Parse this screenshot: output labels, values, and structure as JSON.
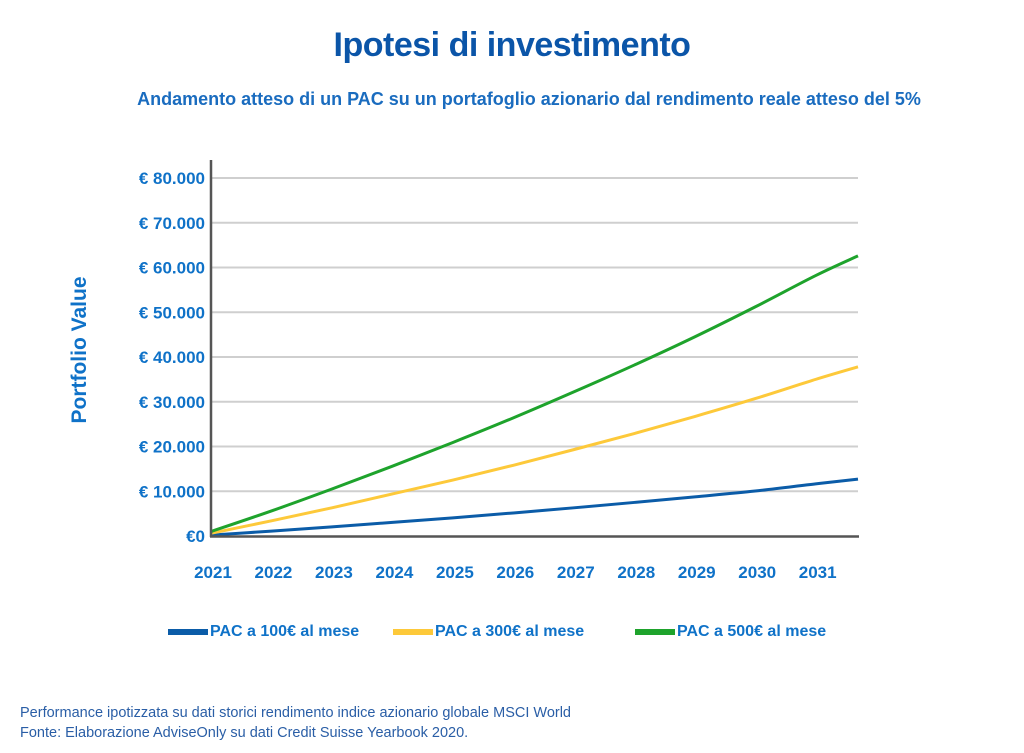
{
  "chart_data": {
    "type": "line",
    "title": "Ipotesi di investimento",
    "subtitle": "Andamento atteso di un PAC su un portafoglio azionario dal rendimento reale atteso del 5%",
    "xlabel": "",
    "ylabel": "Portfolio Value",
    "x_tick_labels": [
      "2021",
      "2022",
      "2023",
      "2024",
      "2025",
      "2026",
      "2027",
      "2028",
      "2029",
      "2030",
      "2031"
    ],
    "y_tick_labels": [
      "€0",
      "€ 10.000",
      "€ 20.000",
      "€ 30.000",
      "€ 40.000",
      "€ 50.000",
      "€ 60.000",
      "€ 70.000",
      "€ 80.000"
    ],
    "y_ticks": [
      0,
      10000,
      20000,
      30000,
      40000,
      50000,
      60000,
      70000,
      80000
    ],
    "xlim": [
      2021,
      2031.7
    ],
    "ylim": [
      0,
      80000
    ],
    "grid": true,
    "legend_position": "bottom",
    "x": [
      2021,
      2022,
      2023,
      2024,
      2025,
      2026,
      2027,
      2028,
      2029,
      2030,
      2031,
      2031.7
    ],
    "series": [
      {
        "name": "PAC a 100€ al mese",
        "color": "#0b5ca8",
        "values": [
          200,
          1100,
          2050,
          3050,
          4050,
          5150,
          6300,
          7500,
          8750,
          10050,
          11650,
          12700
        ]
      },
      {
        "name": "PAC a 300€ al mese",
        "color": "#fdc93a",
        "values": [
          600,
          3400,
          6300,
          9400,
          12500,
          15800,
          19300,
          22900,
          26700,
          30700,
          35000,
          37800
        ]
      },
      {
        "name": "PAC a 500€ al mese",
        "color": "#1ea32c",
        "values": [
          1000,
          5600,
          10500,
          15600,
          20900,
          26400,
          32200,
          38200,
          44500,
          51200,
          58200,
          62600
        ]
      }
    ]
  },
  "footer": {
    "line1": "Performance ipotizzata su dati storici rendimento indice azionario globale MSCI World",
    "line2": "Fonte: Elaborazione AdviseOnly su dati Credit Suisse Yearbook 2020."
  }
}
